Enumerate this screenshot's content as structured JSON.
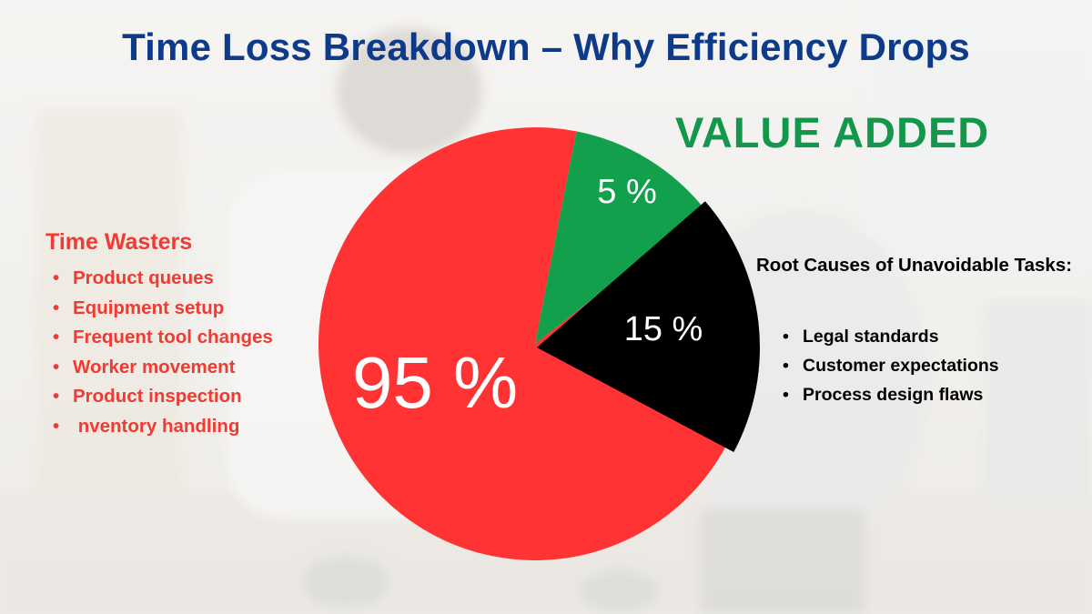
{
  "title": "Time Loss Breakdown – Why Efficiency Drops",
  "colors": {
    "title": "#0d3b8a",
    "value_added": "#13974a",
    "wasters": "#f03a32",
    "slice_waste": "#ff3333",
    "slice_value": "#12a04c",
    "slice_unavoidable": "#000000",
    "slice_label": "#ffffff"
  },
  "value_added_label": "VALUE ADDED",
  "time_wasters": {
    "heading": "Time Wasters",
    "items": [
      "Product queues",
      "Equipment setup",
      "Frequent tool changes",
      "Worker movement",
      "Product inspection",
      " nventory handling"
    ]
  },
  "root_causes": {
    "heading": "Root Causes of Unavoidable Tasks:",
    "items": [
      "Legal standards",
      "Customer expectations",
      "Process design flaws"
    ]
  },
  "chart_data": {
    "type": "pie",
    "slices": [
      {
        "label": "95 %",
        "value": 95,
        "color": "#ff3333"
      },
      {
        "label": "5 %",
        "value": 5,
        "color": "#12a04c"
      },
      {
        "label": "15 %",
        "value": 15,
        "color": "#000000"
      }
    ]
  }
}
